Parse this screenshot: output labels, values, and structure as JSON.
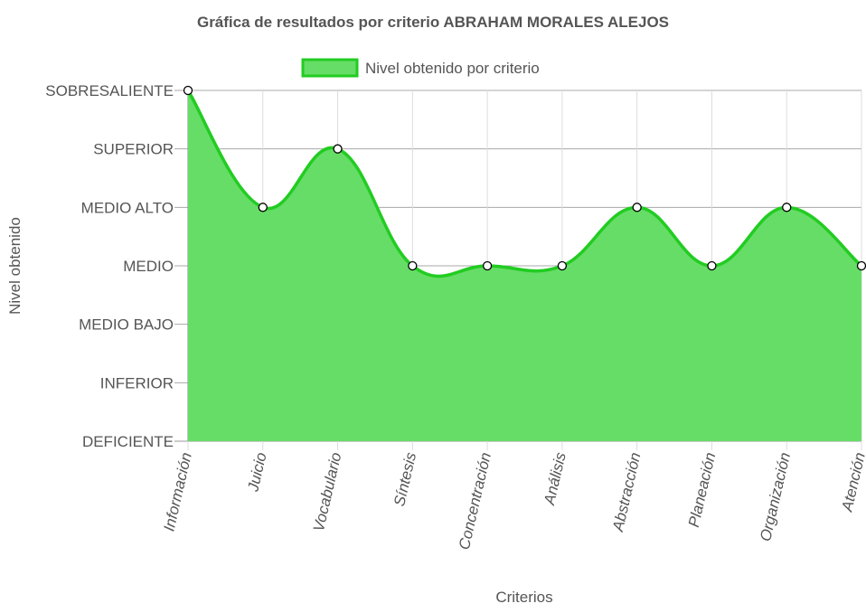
{
  "chart_data": {
    "type": "area",
    "title": "Gráfica de resultados por criterio ABRAHAM MORALES ALEJOS",
    "xlabel": "Criterios",
    "ylabel": "Nivel obtenido",
    "categories": [
      "Información",
      "Juicio",
      "Vocabulario",
      "Síntesis",
      "Concentración",
      "Análisis",
      "Abstracción",
      "Planeación",
      "Organización",
      "Atención"
    ],
    "y_levels": [
      "DEFICIENTE",
      "INFERIOR",
      "MEDIO BAJO",
      "MEDIO",
      "MEDIO ALTO",
      "SUPERIOR",
      "SOBRESALIENTE"
    ],
    "series": [
      {
        "name": "Nivel obtenido por criterio",
        "values": [
          "SOBRESALIENTE",
          "MEDIO ALTO",
          "SUPERIOR",
          "MEDIO",
          "MEDIO",
          "MEDIO",
          "MEDIO ALTO",
          "MEDIO",
          "MEDIO ALTO",
          "MEDIO"
        ],
        "fill_color": "#66dd66",
        "line_color": "#22cc22"
      }
    ],
    "legend_position": "top",
    "grid": true,
    "smooth": true
  }
}
